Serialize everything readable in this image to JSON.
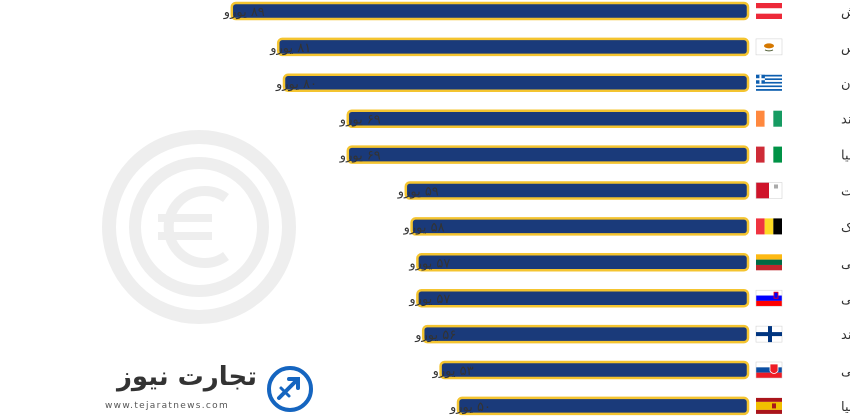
{
  "chart_data": {
    "type": "bar",
    "orientation": "horizontal",
    "categories": [
      "اتریش",
      "قبرس",
      "یونان",
      "ایرلند",
      "ایتالیا",
      "مالت",
      "بلژیک",
      "لیتوانی",
      "اسلوونی",
      "فنلاند",
      "اسلواکی",
      "اسپانیا"
    ],
    "values": [
      89,
      81,
      80,
      69,
      69,
      59,
      58,
      57,
      57,
      56,
      53,
      50
    ],
    "value_labels": [
      "۸۹ یورو",
      "۸۱ یورو",
      "۸۰ یورو",
      "۶۹ یورو",
      "۶۹ یورو",
      "۵۹ یورو",
      "۵۸ یورو",
      "۵۷ یورو",
      "۵۷ یورو",
      "۵۶ یورو",
      "۵۳ یورو",
      "۵۰ یورو"
    ],
    "flags": [
      "austria-flag",
      "cyprus-flag",
      "greece-flag",
      "ireland-flag",
      "italy-flag",
      "malta-flag",
      "belgium-flag",
      "lithuania-flag",
      "slovenia-flag",
      "finland-flag",
      "slovakia-flag",
      "spain-flag"
    ],
    "title": "",
    "xlabel": "",
    "ylabel": "",
    "grid": false,
    "bar_color": "#1a3a7a",
    "bar_outline_color": "#f4c430"
  },
  "watermark": {
    "icon": "euro-coin-icon",
    "color": "#eeeeee"
  },
  "logo": {
    "name": "تجارت نیوز",
    "url": "www.tejaratnews.com",
    "icon": "tejarat-logo-mark-icon",
    "color": "#1565c0"
  }
}
